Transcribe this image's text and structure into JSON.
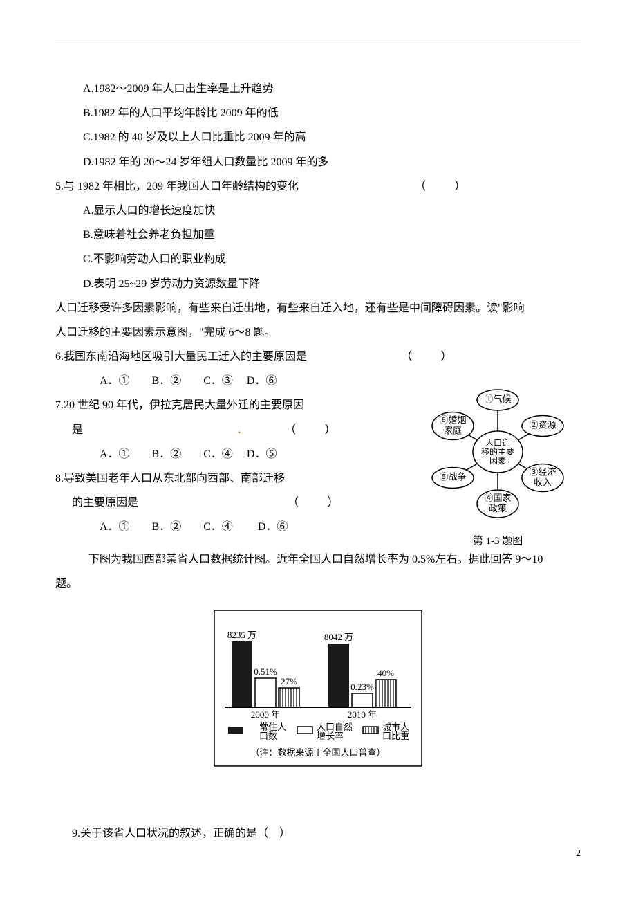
{
  "options4": {
    "a": "A.1982～2009 年人口出生率是上升趋势",
    "b": "B.1982 年的人口平均年龄比 2009 年的低",
    "c": "C.1982 的 40 岁及以上人口比重比 2009 年的高",
    "d": "D.1982 年的 20～24 岁年组人口数量比 2009 年的多"
  },
  "q5": {
    "stem": "5.与 1982 年相比，209 年我国人口年龄结构的变化",
    "paren": "（　　）",
    "a": "A.显示人口的增长速度加快",
    "b": "B.意味着社会养老负担加重",
    "c": "C.不影响劳动人口的职业构成",
    "d": "D.表明 25~29 岁劳动力资源数量下降"
  },
  "intro678": {
    "l1": "人口迁移受许多因素影响，有些来自迁出地，有些来自迁入地，还有些是中间障碍因素。读\"影响",
    "l2": "人口迁移的主要因素示意图，\"完成 6～8 题。"
  },
  "q6": {
    "stem": "6.我国东南沿海地区吸引大量民工迁入的主要原因是",
    "paren": "（　　）",
    "opts": "A．①　　B．②　　C．③　 D．⑥"
  },
  "q7": {
    "stem1": "7.20 世纪 90 年代，伊拉克居民大量外迁的主要原因",
    "stem2_a": "是",
    "stem2_b": "（　　）",
    "opts": "A．①　　B．②　　C．④　 D．⑤"
  },
  "q8": {
    "stem1": "8.导致美国老年人口从东北部向西部、南部迁移",
    "stem2_a": "的主要原因是",
    "stem2_b": "（　　）",
    "opts": "A．①　　B．②　　C．④　　 D．⑥"
  },
  "diagram": {
    "center_l1": "人口迁",
    "center_l2": "移的主要",
    "center_l3": "因素",
    "n1": "①气候",
    "n2": "②资源",
    "n3_l1": "③经济",
    "n3_l2": "收入",
    "n4_l1": "④国家",
    "n4_l2": "政策",
    "n5": "⑤战争",
    "n6_l1": "⑥婚姻",
    "n6_l2": "家庭",
    "caption": "第 1-3 题图",
    "node_stroke": "#000000",
    "node_fill": "#ffffff",
    "font_size": 13
  },
  "intro910": {
    "l1": "　　　下图为我国西部某省人口数据统计图。近年全国人口自然增长率为 0.5%左右。据此回答 9～10",
    "l2": "题。"
  },
  "chart": {
    "groups": [
      {
        "year": "2000 年",
        "pop": "8235 万",
        "pop_h": 95,
        "rate": "0.51%",
        "rate_h": 42,
        "urban": "27%",
        "urban_h": 28
      },
      {
        "year": "2010 年",
        "pop": "8042 万",
        "pop_h": 92,
        "rate": "0.23%",
        "rate_h": 20,
        "urban": "40%",
        "urban_h": 40
      }
    ],
    "legend": {
      "pop_l1": "常住人",
      "pop_l2": "口数",
      "rate_l1": "人口自然",
      "rate_l2": "增长率",
      "urban_l1": "城市人",
      "urban_l2": "口比重"
    },
    "note": "（注：数据来源于全国人口普查）",
    "colors": {
      "pop_fill": "#1a1a1a",
      "rate_fill": "#ffffff",
      "urban_stroke": "#000000",
      "axis": "#000000",
      "text": "#000000"
    },
    "font_size": 13
  },
  "q9": "9.关于该省人口状况的叙述，正确的是（　）",
  "page_number": "2"
}
